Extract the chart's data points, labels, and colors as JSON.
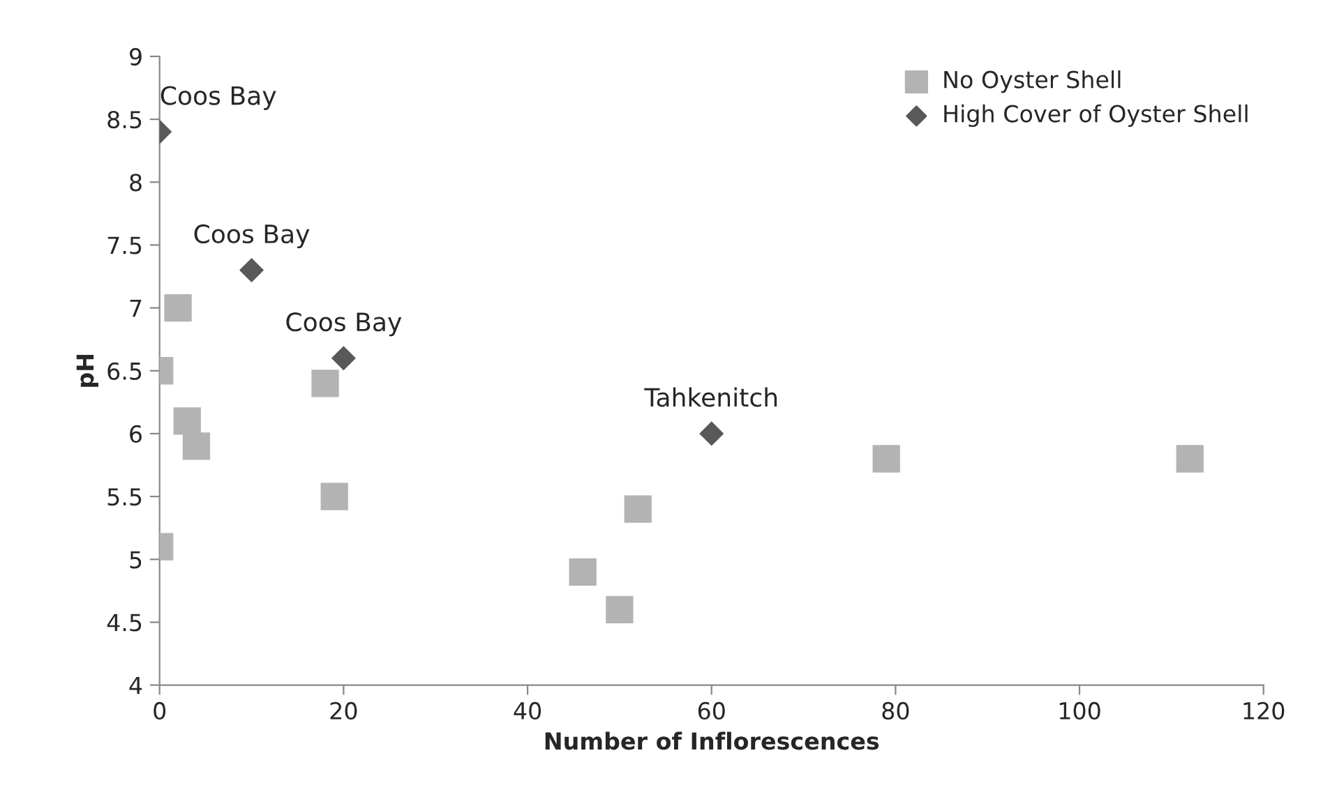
{
  "chart_data": {
    "type": "scatter",
    "xlabel": "Number of Inflorescences",
    "ylabel": "pH",
    "xlim": [
      0,
      120
    ],
    "xticks": [
      0,
      20,
      40,
      60,
      80,
      100,
      120
    ],
    "ylim": [
      4,
      9
    ],
    "yticks": [
      4,
      4.5,
      5,
      5.5,
      6,
      6.5,
      7,
      7.5,
      8,
      8.5,
      9
    ],
    "grid": false,
    "legend": "top right",
    "series": [
      {
        "name": "No Oyster Shell",
        "color": "#b3b3b3",
        "marker": "square",
        "x": [
          0,
          2,
          3,
          4,
          0,
          18,
          19,
          46,
          50,
          52,
          79,
          112
        ],
        "values": [
          6.5,
          7.0,
          6.1,
          5.9,
          5.1,
          6.4,
          5.5,
          4.9,
          4.6,
          5.4,
          5.8,
          5.8
        ]
      },
      {
        "name": "High Cover of Oyster Shell",
        "color": "#595959",
        "marker": "diamond",
        "x": [
          0,
          10,
          20,
          60
        ],
        "values": [
          8.4,
          7.3,
          6.6,
          6.0
        ]
      }
    ],
    "annotations": [
      {
        "text": "Coos Bay",
        "x": 0,
        "y": 8.4
      },
      {
        "text": "Coos Bay",
        "x": 10,
        "y": 7.3
      },
      {
        "text": "Coos Bay",
        "x": 20,
        "y": 6.6
      },
      {
        "text": "Tahkenitch",
        "x": 60,
        "y": 6.0
      }
    ]
  }
}
